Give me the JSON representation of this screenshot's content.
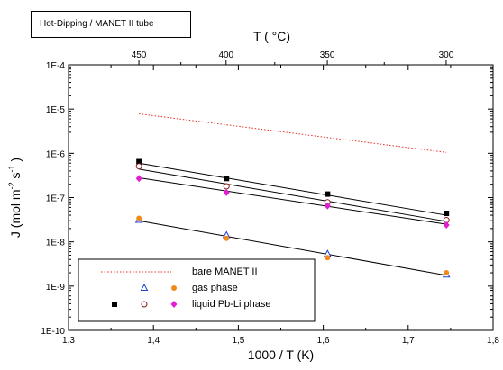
{
  "chart_data": {
    "type": "scatter",
    "inset_label": "Hot-Dipping / MANET II tube",
    "xlabel": "1000 / T (K)",
    "x_top_label": "T ( °C)",
    "ylabel_parts": [
      "J (mol m",
      "-2",
      " s",
      "-1",
      " )"
    ],
    "xlim": [
      1.3,
      1.8
    ],
    "ylim": [
      1e-10,
      0.0001
    ],
    "y_scale": "log",
    "x_ticks": [
      1.3,
      1.4,
      1.5,
      1.6,
      1.7,
      1.8
    ],
    "x_tick_labels": [
      "1,3",
      "1,4",
      "1,5",
      "1,6",
      "1,7",
      "1,8"
    ],
    "y_ticks": [
      0.0001,
      1e-05,
      1e-06,
      1e-07,
      1e-08,
      1e-09,
      1e-10
    ],
    "y_tick_labels": [
      "1E-4",
      "1E-5",
      "1E-6",
      "1E-7",
      "1E-8",
      "1E-9",
      "1E-10"
    ],
    "top_ticks_celsius": [
      450,
      400,
      350,
      300
    ],
    "top_tick_labels": [
      "450",
      "400",
      "350",
      "300"
    ],
    "series": [
      {
        "name": "bare MANET II",
        "kind": "line",
        "style": "dotted",
        "color": "#e0302a",
        "x": [
          1.383,
          1.745
        ],
        "y": [
          7.8e-06,
          1.05e-06
        ]
      },
      {
        "name": "gas phase",
        "kind": "points",
        "marker": "triangle-open",
        "color": "#1f3fcf",
        "x": [
          1.383,
          1.486,
          1.605,
          1.745
        ],
        "y": [
          3.1e-08,
          1.4e-08,
          5.3e-09,
          1.8e-09
        ]
      },
      {
        "name": "gas phase",
        "kind": "points",
        "marker": "circle-filled",
        "color": "#f08a1c",
        "x": [
          1.383,
          1.486,
          1.605,
          1.745
        ],
        "y": [
          3.4e-08,
          1.2e-08,
          4.4e-09,
          2e-09
        ]
      },
      {
        "name": "liquid Pb-Li phase",
        "kind": "points",
        "marker": "square-filled",
        "color": "#000000",
        "x": [
          1.383,
          1.486,
          1.605,
          1.745
        ],
        "y": [
          6.5e-07,
          2.7e-07,
          1.2e-07,
          4.4e-08
        ]
      },
      {
        "name": "liquid Pb-Li phase",
        "kind": "points",
        "marker": "circle-open",
        "color": "#8b1a1a",
        "x": [
          1.383,
          1.486,
          1.605,
          1.745
        ],
        "y": [
          5.1e-07,
          1.8e-07,
          7.8e-08,
          3.1e-08
        ]
      },
      {
        "name": "liquid Pb-Li phase",
        "kind": "points",
        "marker": "diamond-filled",
        "color": "#e020d0",
        "x": [
          1.383,
          1.486,
          1.605,
          1.745
        ],
        "y": [
          2.7e-07,
          1.3e-07,
          6.5e-08,
          2.4e-08
        ]
      }
    ],
    "fit_lines": [
      {
        "x": [
          1.383,
          1.745
        ],
        "y": [
          6e-07,
          4e-08
        ]
      },
      {
        "x": [
          1.383,
          1.745
        ],
        "y": [
          4.4e-07,
          2.9e-08
        ]
      },
      {
        "x": [
          1.383,
          1.745
        ],
        "y": [
          2.8e-07,
          2.5e-08
        ]
      },
      {
        "x": [
          1.383,
          1.745
        ],
        "y": [
          3e-08,
          1.75e-09
        ]
      }
    ],
    "legend": {
      "placement": "bottom-left",
      "rows": [
        {
          "label": "bare MANET II",
          "symbols": [
            "dotted-line"
          ]
        },
        {
          "label": "gas phase",
          "symbols": [
            "triangle-open",
            "circle-filled"
          ]
        },
        {
          "label": "liquid Pb-Li phase",
          "symbols": [
            "square-filled",
            "circle-open",
            "diamond-filled"
          ]
        }
      ]
    }
  }
}
